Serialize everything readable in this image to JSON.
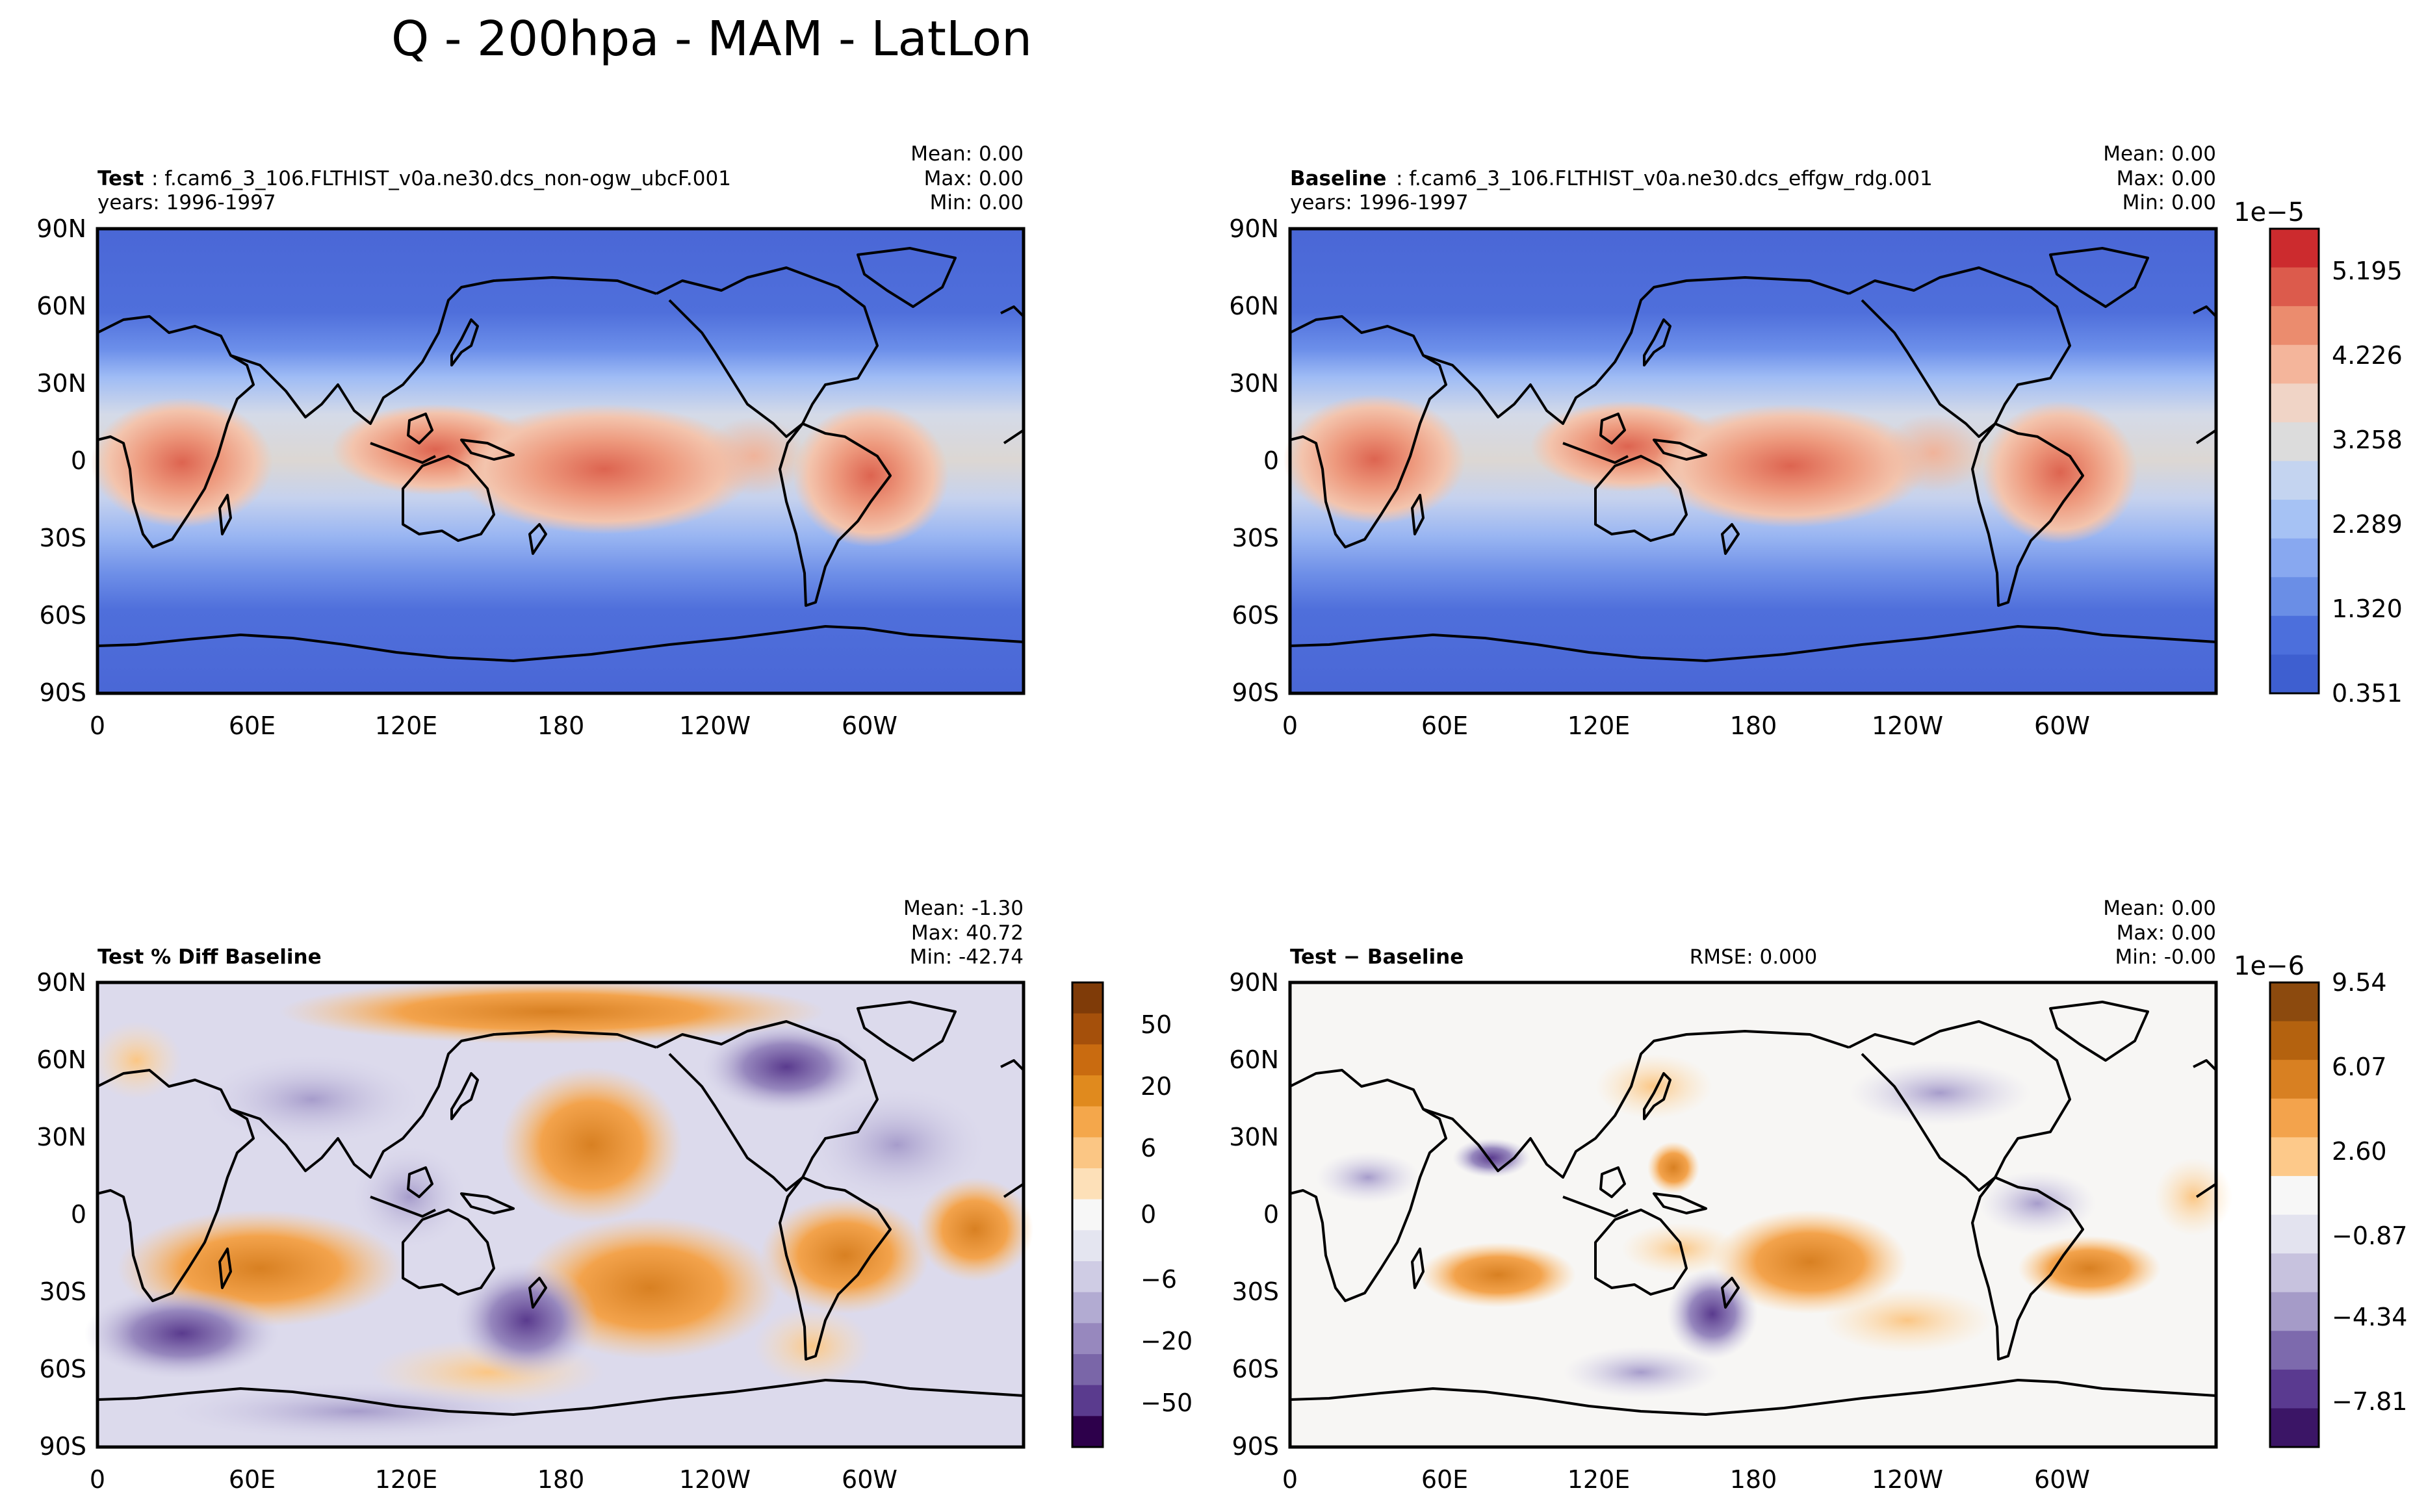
{
  "figure": {
    "title": "Q - 200hpa - MAM - LatLon"
  },
  "chart_data": [
    {
      "type": "heatmap",
      "panel": "test",
      "label_bold": "Test",
      "label_text": ": f.cam6_3_106.FLTHIST_v0a.ne30.dcs_non-ogw_ubcF.001",
      "years": "years: 1996-1997",
      "stats": {
        "mean": "Mean:  0.00",
        "max": "Max:  0.00",
        "min": "Min:  0.00"
      },
      "rmse": "",
      "x_ticks": [
        "0",
        "60E",
        "120E",
        "180",
        "120W",
        "60W"
      ],
      "y_ticks": [
        "90N",
        "60N",
        "30N",
        "0",
        "30S",
        "60S",
        "90S"
      ],
      "xlim": [
        0,
        360
      ],
      "ylim": [
        -90,
        90
      ],
      "colormap": "coolwarm",
      "colorbar": null
    },
    {
      "type": "heatmap",
      "panel": "baseline",
      "label_bold": "Baseline",
      "label_text": ": f.cam6_3_106.FLTHIST_v0a.ne30.dcs_effgw_rdg.001",
      "years": "years: 1996-1997",
      "stats": {
        "mean": "Mean:  0.00",
        "max": "Max:  0.00",
        "min": "Min:  0.00"
      },
      "rmse": "",
      "x_ticks": [
        "0",
        "60E",
        "120E",
        "180",
        "120W",
        "60W"
      ],
      "y_ticks": [
        "90N",
        "60N",
        "30N",
        "0",
        "30S",
        "60S",
        "90S"
      ],
      "xlim": [
        0,
        360
      ],
      "ylim": [
        -90,
        90
      ],
      "colormap": "coolwarm",
      "colorbar": {
        "exponent": "1e−5",
        "ticks": [
          "5.195",
          "4.226",
          "3.258",
          "2.289",
          "1.320",
          "0.351"
        ],
        "colors": [
          "#cc2b2e",
          "#dc5b4c",
          "#eb8c6e",
          "#f4b59b",
          "#f0d4c6",
          "#dcdcdc",
          "#c4d4f0",
          "#a6c2f4",
          "#88a8f0",
          "#6a8ee6",
          "#4c6fdc",
          "#3e5fd0"
        ]
      }
    },
    {
      "type": "heatmap",
      "panel": "pct-diff",
      "label_bold": "Test % Diff Baseline",
      "label_text": "",
      "years": "",
      "stats": {
        "mean": "Mean: -1.30",
        "max": "Max: 40.72",
        "min": "Min: -42.74"
      },
      "rmse": "",
      "x_ticks": [
        "0",
        "60E",
        "120E",
        "180",
        "120W",
        "60W"
      ],
      "y_ticks": [
        "90N",
        "60N",
        "30N",
        "0",
        "30S",
        "60S",
        "90S"
      ],
      "xlim": [
        0,
        360
      ],
      "ylim": [
        -90,
        90
      ],
      "colormap": "PuOr_r",
      "colorbar": {
        "exponent": "",
        "ticks": [
          "50",
          "20",
          "6",
          "0",
          "−6",
          "−20",
          "−50"
        ],
        "colors": [
          "#7f3b08",
          "#a5500b",
          "#c96b10",
          "#e08a1e",
          "#f4a74b",
          "#fbc684",
          "#fde0b8",
          "#f7f7f7",
          "#e4e5f0",
          "#cfcce4",
          "#b2abd2",
          "#9788be",
          "#7a66a8",
          "#5a3b8e",
          "#2d004b"
        ]
      }
    },
    {
      "type": "heatmap",
      "panel": "diff",
      "label_bold": "Test − Baseline",
      "label_text": "",
      "years": "",
      "stats": {
        "mean": "Mean:  0.00",
        "max": "Max:  0.00",
        "min": "Min: -0.00"
      },
      "rmse": "RMSE: 0.000",
      "x_ticks": [
        "0",
        "60E",
        "120E",
        "180",
        "120W",
        "60W"
      ],
      "y_ticks": [
        "90N",
        "60N",
        "30N",
        "0",
        "30S",
        "60S",
        "90S"
      ],
      "xlim": [
        0,
        360
      ],
      "ylim": [
        -90,
        90
      ],
      "colormap": "PuOr_r",
      "colorbar": {
        "exponent": "1e−6",
        "ticks": [
          "9.54",
          "6.07",
          "2.60",
          "−0.87",
          "−4.34",
          "−7.81"
        ],
        "colors": [
          "#8c4a0e",
          "#b4620f",
          "#d88022",
          "#f3a34c",
          "#fdc98a",
          "#f7f7f7",
          "#e3e3ef",
          "#c7c2de",
          "#a59bc8",
          "#7d6aad",
          "#5a3a90",
          "#3b1566"
        ]
      }
    }
  ]
}
